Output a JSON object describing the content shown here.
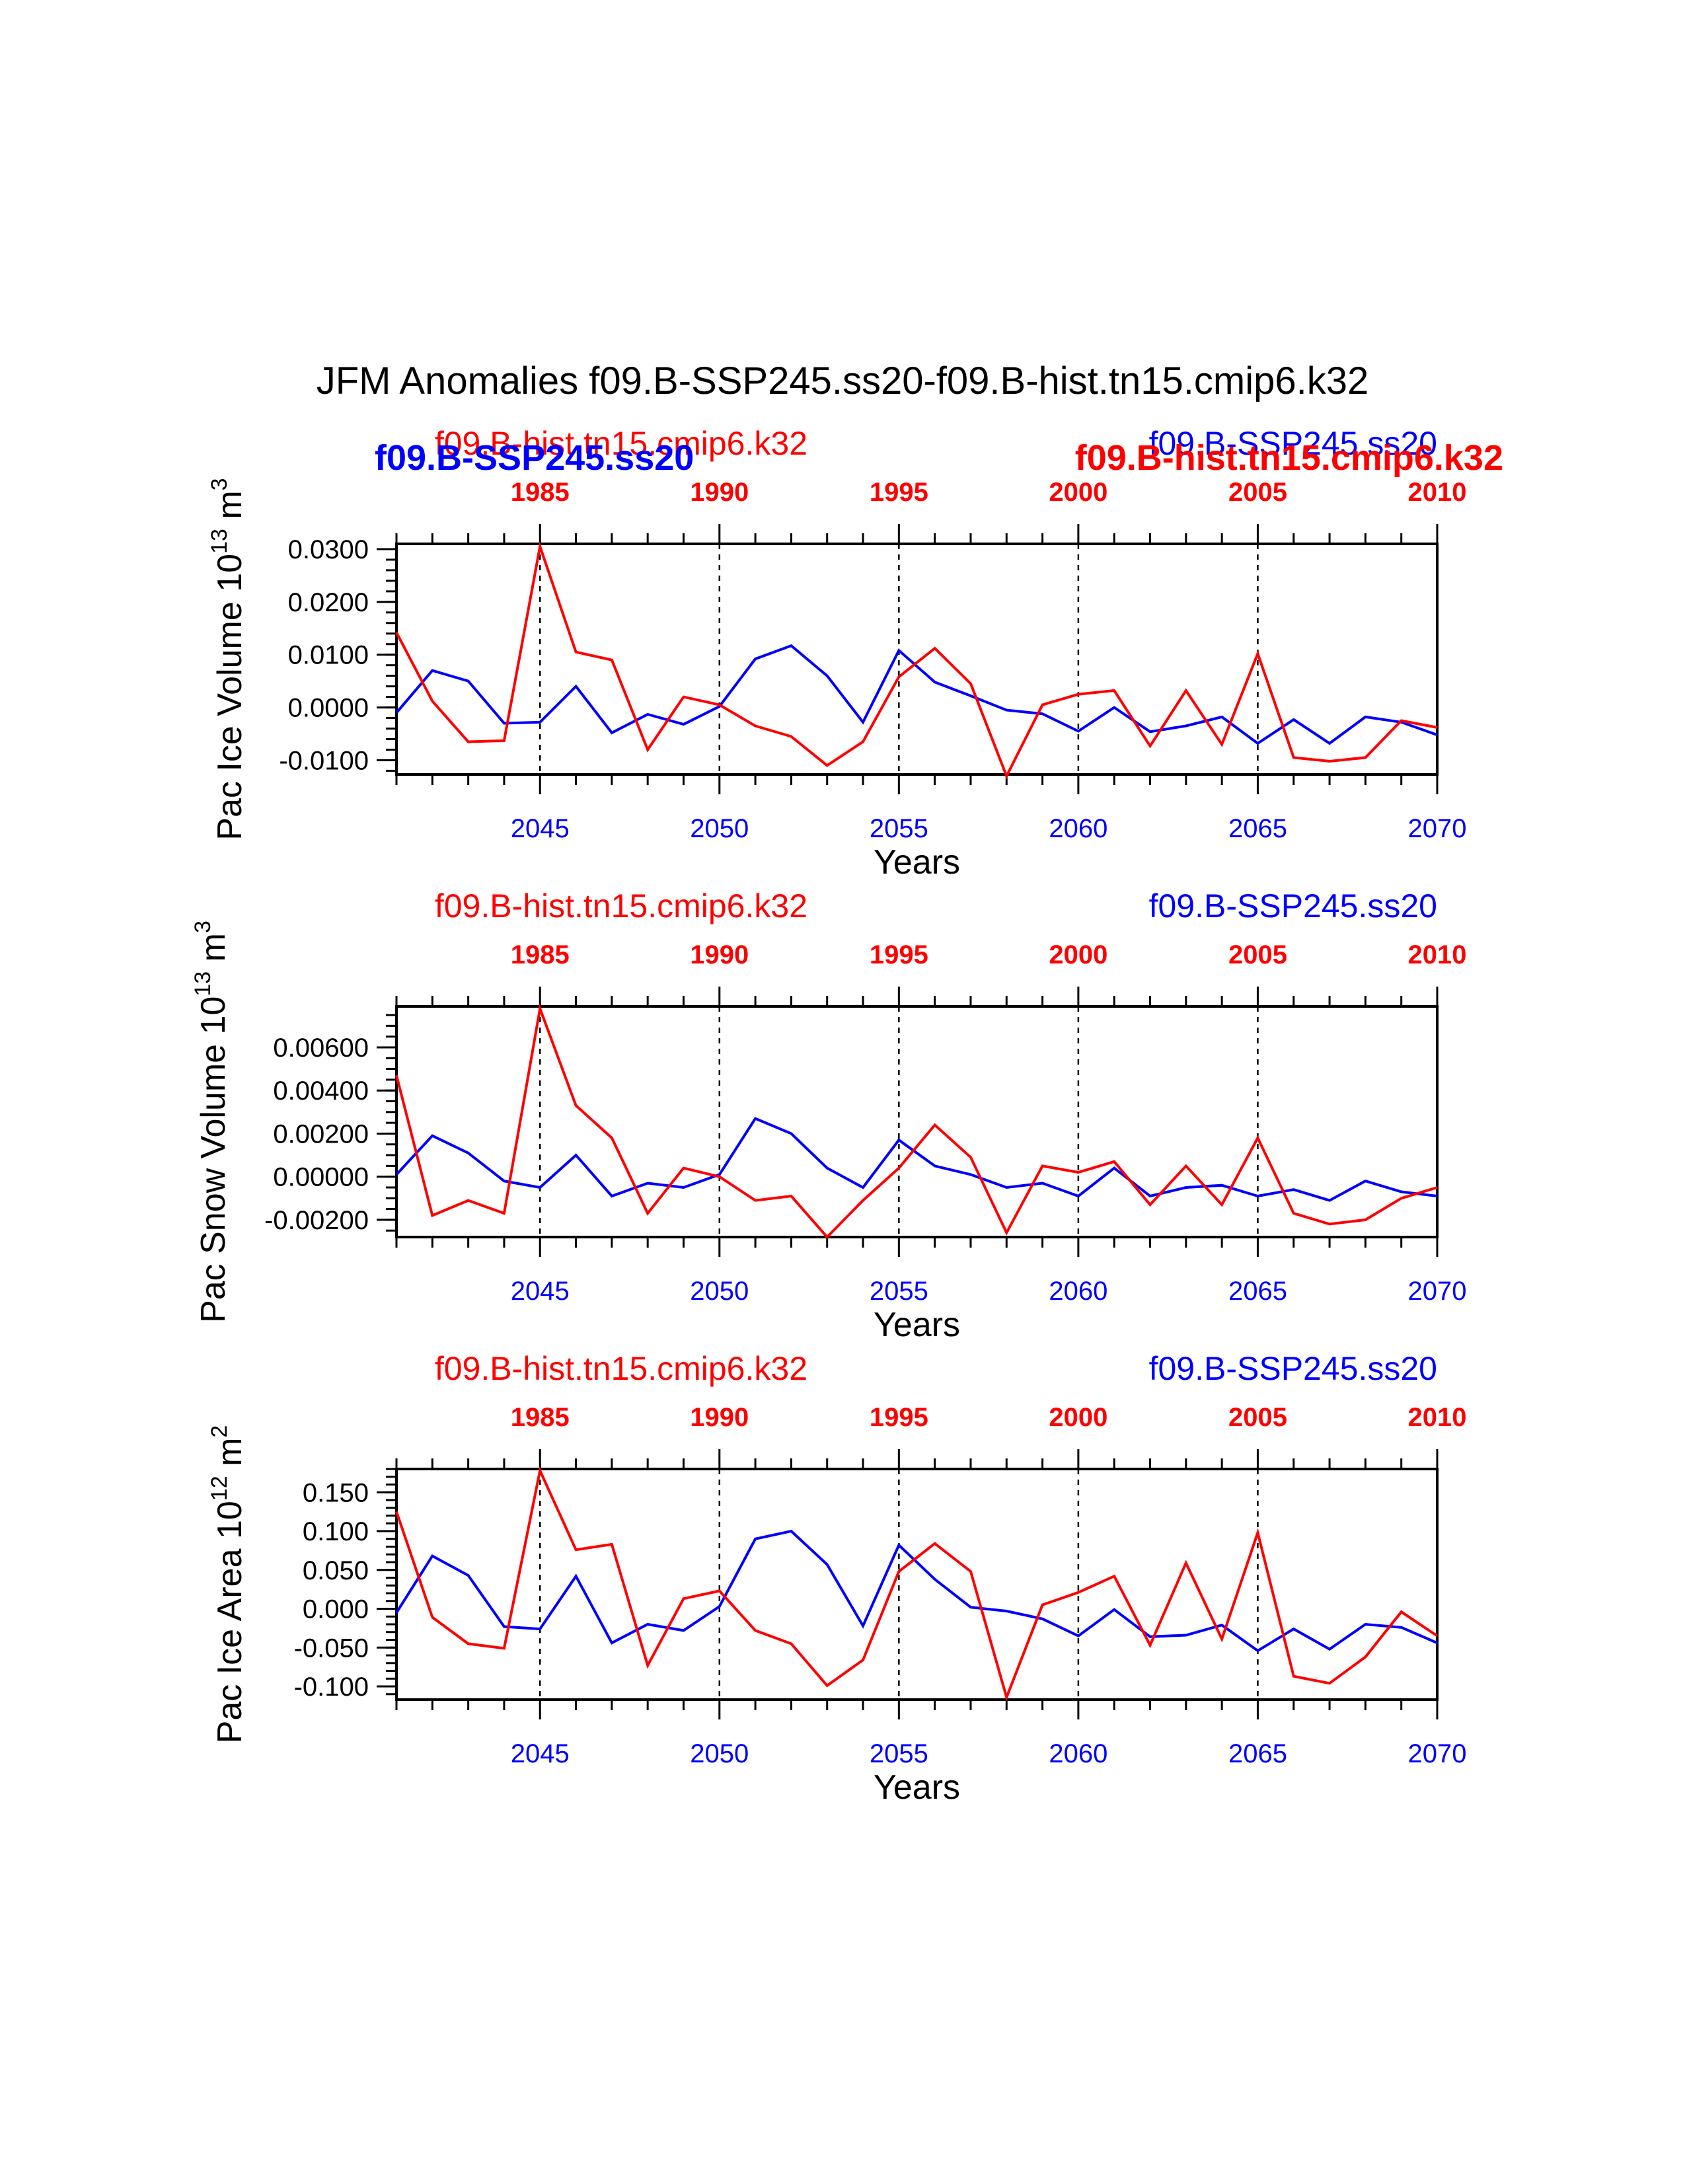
{
  "title": "JFM Anomalies f09.B-SSP245.ss20-f09.B-hist.tn15.cmip6.k32",
  "colors": {
    "ssp": "#0000ff",
    "hist": "#ff0000",
    "axis": "#000000"
  },
  "chart_data": [
    {
      "type": "line",
      "ylabel": "Pac Ice Volume 10^13 m^3",
      "ylabel_base": "Pac Ice Volume 10",
      "ylabel_exp": "13",
      "ylabel_unit": " m",
      "ylabel_unit_exp": "3",
      "xlabel": "Years",
      "xlim": [
        2041,
        2070
      ],
      "ylim": [
        -0.0127,
        0.031
      ],
      "yticks": [
        -0.01,
        0.0,
        0.01,
        0.02,
        0.03
      ],
      "yticklabels": [
        "-0.0100",
        "0.0000",
        "0.0100",
        "0.0200",
        "0.0300"
      ],
      "yminor": 0.002,
      "bottom_ticks": [
        2045,
        2050,
        2055,
        2060,
        2065,
        2070
      ],
      "bottom_ticklabels": [
        "2045",
        "2050",
        "2055",
        "2060",
        "2065",
        "2070"
      ],
      "top_ticks": [
        1985,
        1990,
        1995,
        2000,
        2005,
        2010
      ],
      "top_ticklabels": [
        "1985",
        "1990",
        "1995",
        "2000",
        "2005",
        "2010"
      ],
      "top_offset": 60,
      "vlines": [
        2045,
        2050,
        2055,
        2060,
        2065
      ],
      "legend_hist": "f09.B-hist.tn15.cmip6.k32",
      "legend_ssp": "f09.B-SSP245.ss20",
      "overlap_labels": {
        "ssp_bold_left": "f09.B-SSP245.ss20",
        "hist_bold_right": "f09.B-hist.tn15.cmip6.k32"
      },
      "x": [
        2041,
        2042,
        2043,
        2044,
        2045,
        2046,
        2047,
        2048,
        2049,
        2050,
        2051,
        2052,
        2053,
        2054,
        2055,
        2056,
        2057,
        2058,
        2059,
        2060,
        2061,
        2062,
        2063,
        2064,
        2065,
        2066,
        2067,
        2068,
        2069,
        2070
      ],
      "series": [
        {
          "name": "f09.B-SSP245.ss20",
          "color": "#0000ff",
          "values": [
            -0.001,
            0.007,
            0.005,
            -0.003,
            -0.0028,
            0.004,
            -0.0048,
            -0.0013,
            -0.0032,
            0.0002,
            0.0092,
            0.0117,
            0.006,
            -0.0028,
            0.0108,
            0.0048,
            0.0022,
            -0.0005,
            -0.0012,
            -0.0045,
            0.0,
            -0.0046,
            -0.0035,
            -0.0018,
            -0.0068,
            -0.0023,
            -0.0068,
            -0.0018,
            -0.0028,
            -0.0052
          ]
        },
        {
          "name": "f09.B-hist.tn15.cmip6.k32",
          "color": "#ff0000",
          "values": [
            0.0142,
            0.0012,
            -0.0065,
            -0.0063,
            0.0305,
            0.0105,
            0.009,
            -0.008,
            0.002,
            0.0005,
            -0.0035,
            -0.0055,
            -0.011,
            -0.0065,
            0.0058,
            0.0112,
            0.0045,
            -0.013,
            0.0005,
            0.0025,
            0.0032,
            -0.0073,
            0.0032,
            -0.007,
            0.0102,
            -0.0095,
            -0.0102,
            -0.0095,
            -0.0025,
            -0.0038
          ]
        }
      ]
    },
    {
      "type": "line",
      "ylabel": "Pac Snow Volume 10^13 m^3",
      "ylabel_base": "Pac Snow Volume 10",
      "ylabel_exp": "13",
      "ylabel_unit": " m",
      "ylabel_unit_exp": "3",
      "xlabel": "Years",
      "xlim": [
        2041,
        2070
      ],
      "ylim": [
        -0.0028,
        0.0079
      ],
      "yticks": [
        -0.002,
        0.0,
        0.002,
        0.004,
        0.006
      ],
      "yticklabels": [
        "-0.00200",
        "0.00000",
        "0.00200",
        "0.00400",
        "0.00600"
      ],
      "yminor": 0.0005,
      "bottom_ticks": [
        2045,
        2050,
        2055,
        2060,
        2065,
        2070
      ],
      "bottom_ticklabels": [
        "2045",
        "2050",
        "2055",
        "2060",
        "2065",
        "2070"
      ],
      "top_ticks": [
        1985,
        1990,
        1995,
        2000,
        2005,
        2010
      ],
      "top_ticklabels": [
        "1985",
        "1990",
        "1995",
        "2000",
        "2005",
        "2010"
      ],
      "top_offset": 60,
      "vlines": [
        2045,
        2050,
        2055,
        2060,
        2065
      ],
      "legend_hist": "f09.B-hist.tn15.cmip6.k32",
      "legend_ssp": "f09.B-SSP245.ss20",
      "x": [
        2041,
        2042,
        2043,
        2044,
        2045,
        2046,
        2047,
        2048,
        2049,
        2050,
        2051,
        2052,
        2053,
        2054,
        2055,
        2056,
        2057,
        2058,
        2059,
        2060,
        2061,
        2062,
        2063,
        2064,
        2065,
        2066,
        2067,
        2068,
        2069,
        2070
      ],
      "series": [
        {
          "name": "f09.B-SSP245.ss20",
          "color": "#0000ff",
          "values": [
            0.0001,
            0.0019,
            0.0011,
            -0.0002,
            -0.0005,
            0.001,
            -0.0009,
            -0.0003,
            -0.0005,
            0.0001,
            0.0027,
            0.002,
            0.0004,
            -0.0005,
            0.0017,
            0.0005,
            0.0001,
            -0.0005,
            -0.0003,
            -0.0009,
            0.0004,
            -0.0009,
            -0.0005,
            -0.0004,
            -0.0009,
            -0.0006,
            -0.0011,
            -0.0002,
            -0.0007,
            -0.0009
          ]
        },
        {
          "name": "f09.B-hist.tn15.cmip6.k32",
          "color": "#ff0000",
          "values": [
            0.0047,
            -0.0018,
            -0.0011,
            -0.0017,
            0.0078,
            0.0033,
            0.0018,
            -0.0017,
            0.0004,
            0.0,
            -0.0011,
            -0.0009,
            -0.0028,
            -0.0011,
            0.0004,
            0.0024,
            0.0009,
            -0.0026,
            0.0005,
            0.0002,
            0.0007,
            -0.0013,
            0.0005,
            -0.0013,
            0.0018,
            -0.0017,
            -0.0022,
            -0.002,
            -0.001,
            -0.0005
          ]
        }
      ]
    },
    {
      "type": "line",
      "ylabel": "Pac Ice Area 10^12 m^2",
      "ylabel_base": "Pac Ice Area 10",
      "ylabel_exp": "12",
      "ylabel_unit": " m",
      "ylabel_unit_exp": "2",
      "xlabel": "Years",
      "xlim": [
        2041,
        2070
      ],
      "ylim": [
        -0.117,
        0.18
      ],
      "yticks": [
        -0.1,
        -0.05,
        0.0,
        0.05,
        0.1,
        0.15
      ],
      "yticklabels": [
        "-0.100",
        "-0.050",
        "0.000",
        "0.050",
        "0.100",
        "0.150"
      ],
      "yminor": 0.01,
      "bottom_ticks": [
        2045,
        2050,
        2055,
        2060,
        2065,
        2070
      ],
      "bottom_ticklabels": [
        "2045",
        "2050",
        "2055",
        "2060",
        "2065",
        "2070"
      ],
      "top_ticks": [
        1985,
        1990,
        1995,
        2000,
        2005,
        2010
      ],
      "top_ticklabels": [
        "1985",
        "1990",
        "1995",
        "2000",
        "2005",
        "2010"
      ],
      "top_offset": 60,
      "vlines": [
        2045,
        2050,
        2055,
        2060,
        2065
      ],
      "legend_hist": "f09.B-hist.tn15.cmip6.k32",
      "legend_ssp": "f09.B-SSP245.ss20",
      "x": [
        2041,
        2042,
        2043,
        2044,
        2045,
        2046,
        2047,
        2048,
        2049,
        2050,
        2051,
        2052,
        2053,
        2054,
        2055,
        2056,
        2057,
        2058,
        2059,
        2060,
        2061,
        2062,
        2063,
        2064,
        2065,
        2066,
        2067,
        2068,
        2069,
        2070
      ],
      "series": [
        {
          "name": "f09.B-SSP245.ss20",
          "color": "#0000ff",
          "values": [
            -0.005,
            0.068,
            0.043,
            -0.023,
            -0.026,
            0.042,
            -0.044,
            -0.02,
            -0.028,
            0.003,
            0.09,
            0.1,
            0.057,
            -0.022,
            0.082,
            0.038,
            0.002,
            -0.003,
            -0.013,
            -0.035,
            -0.001,
            -0.036,
            -0.034,
            -0.021,
            -0.054,
            -0.026,
            -0.052,
            -0.02,
            -0.024,
            -0.044
          ]
        },
        {
          "name": "f09.B-hist.tn15.cmip6.k32",
          "color": "#ff0000",
          "values": [
            0.125,
            -0.011,
            -0.045,
            -0.051,
            0.178,
            0.076,
            0.083,
            -0.073,
            0.013,
            0.023,
            -0.028,
            -0.045,
            -0.099,
            -0.066,
            0.048,
            0.084,
            0.048,
            -0.114,
            0.005,
            0.021,
            0.042,
            -0.047,
            0.059,
            -0.039,
            0.098,
            -0.087,
            -0.096,
            -0.062,
            -0.004,
            -0.035
          ]
        }
      ]
    }
  ]
}
